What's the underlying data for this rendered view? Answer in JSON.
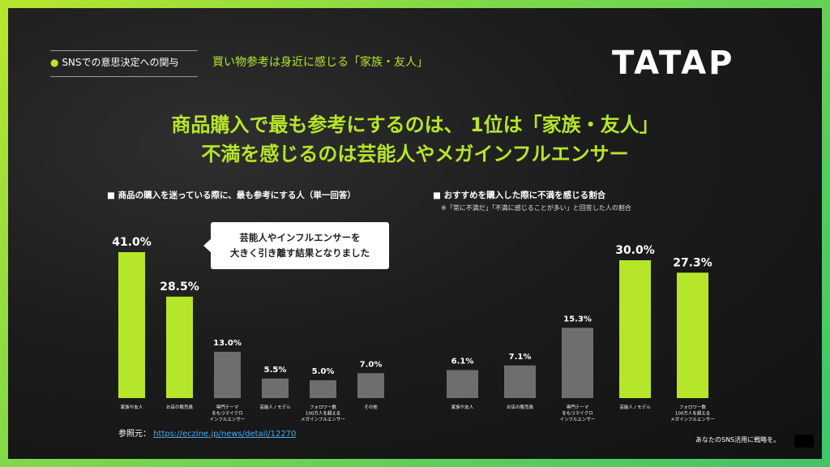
{
  "header": {
    "section_label": "SNSでの意思決定への関与",
    "section_bullet": "●",
    "subtitle": "買い物参考は身近に感じる「家族・友人」",
    "logo": "TATAP"
  },
  "headline": {
    "line1": "商品購入で最も参考にするのは、 1位は「家族・友人」",
    "line2": "不満を感じるのは芸能人やメガインフルエンサー"
  },
  "callout": {
    "line1": "芸能人やインフルエンサーを",
    "line2": "大きく引き離す結果となりました"
  },
  "source": {
    "label": "参照元：",
    "link": "https://eczine.jp/news/detail/12270"
  },
  "footer": {
    "note": "あなたのSNS活用に戦略を。"
  },
  "colors": {
    "accent": "#b6e62a",
    "bar_gray": "#6e6e6e",
    "background": "#1c1c1c"
  },
  "chart_data": [
    {
      "type": "bar",
      "title": "■ 商品の購入を迷っている際に、最も参考にする人（単一回答）",
      "categories": [
        [
          "家族や友人"
        ],
        [
          "お店の販売員"
        ],
        [
          "専門テーマ",
          "をもつマイクロ",
          "インフルエンサー"
        ],
        [
          "芸能人 / モデル"
        ],
        [
          "フォロワー数",
          "100万人を超える",
          "メガインフルエンサー"
        ],
        [
          "その他"
        ]
      ],
      "values": [
        41.0,
        28.5,
        13.0,
        5.5,
        5.0,
        7.0
      ],
      "value_labels": [
        "41.0%",
        "28.5%",
        "13.0%",
        "5.5%",
        "5.0%",
        "7.0%"
      ],
      "highlight": [
        true,
        true,
        false,
        false,
        false,
        false
      ],
      "ylim": [
        0,
        45
      ]
    },
    {
      "type": "bar",
      "title": "■ おすすめを購入した際に不満を感じる割合",
      "note": "※「常に不満だ」「不満に感じることが多い」と回答した人の割合",
      "categories": [
        [
          "家族や友人"
        ],
        [
          "お店の販売員"
        ],
        [
          "専門テーマ",
          "をもつマイクロ",
          "インフルエンサー"
        ],
        [
          "芸能人 / モデル"
        ],
        [
          "フォロワー数",
          "100万人を超える",
          "メガインフルエンサー"
        ]
      ],
      "values": [
        6.1,
        7.1,
        15.3,
        30.0,
        27.3
      ],
      "value_labels": [
        "6.1%",
        "7.1%",
        "15.3%",
        "30.0%",
        "27.3%"
      ],
      "highlight": [
        false,
        false,
        false,
        true,
        true
      ],
      "ylim": [
        0,
        33
      ]
    }
  ]
}
